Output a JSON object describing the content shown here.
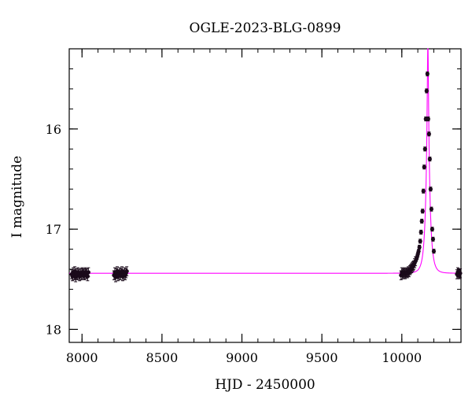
{
  "chart_data": {
    "type": "scatter",
    "title": "OGLE-2023-BLG-0899",
    "xlabel": "HJD - 2450000",
    "ylabel": "I magnitude",
    "xlim": [
      7920,
      10370
    ],
    "ylim": [
      18.13,
      15.2
    ],
    "y_inverted": true,
    "grid": false,
    "xticks": {
      "major": [
        8000,
        8500,
        9000,
        9500,
        10000
      ],
      "major_labels": [
        "8000",
        "8500",
        "9000",
        "9500",
        "10000"
      ],
      "minor_step": 100
    },
    "yticks": {
      "major": [
        16,
        17,
        18
      ],
      "major_labels": [
        "16",
        "17",
        "18"
      ],
      "minor_step": 0.2
    },
    "colors": {
      "data": "#1a0a1a",
      "model": "#ff00ff",
      "axes": "#000000"
    },
    "model": {
      "name": "",
      "baseline": 17.44,
      "t0": 10163,
      "u0": 0.12,
      "tE": 25
    },
    "data_series": [
      {
        "name": "",
        "points": [
          [
            7935,
            17.45
          ],
          [
            7940,
            17.47
          ],
          [
            7945,
            17.43
          ],
          [
            7950,
            17.46
          ],
          [
            7955,
            17.42
          ],
          [
            7960,
            17.48
          ],
          [
            7965,
            17.44
          ],
          [
            7970,
            17.46
          ],
          [
            7975,
            17.43
          ],
          [
            7980,
            17.45
          ],
          [
            7985,
            17.47
          ],
          [
            7990,
            17.44
          ],
          [
            7995,
            17.46
          ],
          [
            8000,
            17.43
          ],
          [
            8005,
            17.45
          ],
          [
            8010,
            17.44
          ],
          [
            8015,
            17.46
          ],
          [
            8020,
            17.43
          ],
          [
            8025,
            17.45
          ],
          [
            8030,
            17.44
          ],
          [
            8035,
            17.47
          ],
          [
            8040,
            17.43
          ],
          [
            8200,
            17.46
          ],
          [
            8205,
            17.43
          ],
          [
            8210,
            17.48
          ],
          [
            8215,
            17.44
          ],
          [
            8220,
            17.42
          ],
          [
            8225,
            17.47
          ],
          [
            8230,
            17.45
          ],
          [
            8235,
            17.43
          ],
          [
            8240,
            17.46
          ],
          [
            8245,
            17.44
          ],
          [
            8250,
            17.42
          ],
          [
            8255,
            17.47
          ],
          [
            8260,
            17.45
          ],
          [
            8265,
            17.43
          ],
          [
            8270,
            17.46
          ],
          [
            8275,
            17.44
          ],
          [
            8280,
            17.42
          ],
          [
            9995,
            17.46
          ],
          [
            10000,
            17.43
          ],
          [
            10005,
            17.45
          ],
          [
            10010,
            17.44
          ],
          [
            10015,
            17.43
          ],
          [
            10020,
            17.45
          ],
          [
            10025,
            17.44
          ],
          [
            10030,
            17.43
          ],
          [
            10035,
            17.44
          ],
          [
            10040,
            17.42
          ],
          [
            10045,
            17.43
          ],
          [
            10050,
            17.41
          ],
          [
            10055,
            17.4
          ],
          [
            10060,
            17.39
          ],
          [
            10065,
            17.38
          ],
          [
            10070,
            17.37
          ],
          [
            10075,
            17.36
          ],
          [
            10080,
            17.34
          ],
          [
            10085,
            17.32
          ],
          [
            10090,
            17.3
          ],
          [
            10095,
            17.28
          ],
          [
            10100,
            17.25
          ],
          [
            10105,
            17.22
          ],
          [
            10110,
            17.18
          ],
          [
            10115,
            17.12
          ],
          [
            10120,
            17.03
          ],
          [
            10125,
            16.92
          ],
          [
            10130,
            16.82
          ],
          [
            10135,
            16.62
          ],
          [
            10140,
            16.38
          ],
          [
            10145,
            16.2
          ],
          [
            10150,
            15.9
          ],
          [
            10155,
            15.62
          ],
          [
            10160,
            15.45
          ],
          [
            10165,
            15.9
          ],
          [
            10170,
            16.05
          ],
          [
            10175,
            16.3
          ],
          [
            10180,
            16.6
          ],
          [
            10185,
            16.8
          ],
          [
            10190,
            17.0
          ],
          [
            10195,
            17.1
          ],
          [
            10200,
            17.22
          ],
          [
            10345,
            17.45
          ],
          [
            10350,
            17.43
          ],
          [
            10355,
            17.44
          ],
          [
            10360,
            17.45
          ],
          [
            10365,
            17.44
          ]
        ]
      }
    ]
  }
}
